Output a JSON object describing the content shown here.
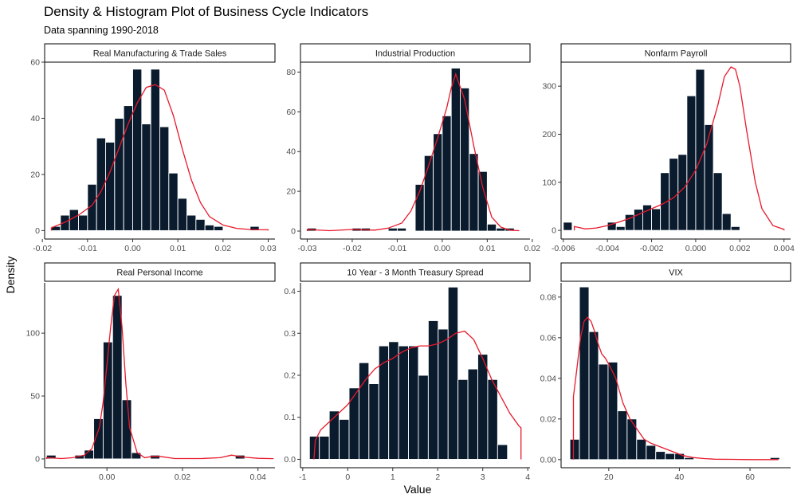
{
  "title": "Density & Histogram Plot of Business Cycle Indicators",
  "subtitle": "Data spanning 1990-2018",
  "xlabel": "Value",
  "ylabel": "Density",
  "colors": {
    "bar": "#0b1b2e",
    "density": "#e8192c",
    "axis": "#000000",
    "tick_text": "#4d4d4d"
  },
  "chart_data": [
    {
      "type": "bar",
      "title": "Real Manufacturing & Trade Sales",
      "xlim": [
        -0.0195,
        0.0315
      ],
      "ylim": [
        -3,
        60
      ],
      "xticks": [
        -0.02,
        -0.01,
        0.0,
        0.01,
        0.02,
        0.03
      ],
      "xtick_labels": [
        "-0.02",
        "-0.01",
        "0.00",
        "0.01",
        "0.02",
        "0.03"
      ],
      "yticks": [
        0,
        20,
        40,
        60
      ],
      "bins": {
        "start": -0.018,
        "width": 0.002,
        "values": [
          1.5,
          5.5,
          7.5,
          5.5,
          16.5,
          33,
          31.5,
          40,
          44.5,
          57.5,
          38,
          57.5,
          37,
          20.5,
          11.5,
          5.5,
          4,
          2,
          1.5,
          0,
          0,
          0,
          1.5
        ]
      },
      "density": {
        "x": [
          -0.018,
          -0.015,
          -0.012,
          -0.009,
          -0.007,
          -0.005,
          -0.003,
          -0.001,
          0.001,
          0.003,
          0.005,
          0.007,
          0.009,
          0.011,
          0.013,
          0.015,
          0.017,
          0.02,
          0.023,
          0.026,
          0.029,
          0.03
        ],
        "y": [
          1,
          3,
          5.5,
          9,
          14,
          21,
          29.5,
          38,
          45.5,
          51,
          52,
          50,
          41,
          29,
          18,
          10,
          5,
          2,
          0.8,
          0.4,
          0.3,
          0.3
        ]
      }
    },
    {
      "type": "bar",
      "title": "Industrial Production",
      "xlim": [
        -0.0315,
        0.0195
      ],
      "ylim": [
        -4,
        85
      ],
      "xticks": [
        -0.03,
        -0.02,
        -0.01,
        0.0,
        0.01,
        0.02
      ],
      "xtick_labels": [
        "-0.03",
        "-0.02",
        "-0.01",
        "0.00",
        "0.01",
        "0.02"
      ],
      "yticks": [
        0,
        20,
        40,
        60,
        80
      ],
      "bins": {
        "start": -0.03,
        "width": 0.002,
        "values": [
          1.5,
          0,
          0,
          0,
          0,
          1.5,
          1.5,
          0,
          0,
          1.5,
          1.5,
          0,
          23.5,
          38,
          49,
          58,
          82,
          72,
          39,
          30,
          3.5,
          1.5,
          1.5
        ]
      },
      "density": {
        "x": [
          -0.03,
          -0.025,
          -0.02,
          -0.015,
          -0.012,
          -0.009,
          -0.007,
          -0.005,
          -0.003,
          -0.001,
          0.001,
          0.002,
          0.003,
          0.005,
          0.007,
          0.009,
          0.011,
          0.013,
          0.015,
          0.017
        ],
        "y": [
          0.8,
          0.2,
          0.8,
          0.5,
          1.5,
          4,
          10,
          20,
          33,
          47,
          62,
          72,
          79,
          66,
          43,
          22,
          7,
          2,
          0.5,
          0.2
        ]
      }
    },
    {
      "type": "bar",
      "title": "Nonfarm Payroll",
      "xlim": [
        -0.0061,
        0.0043
      ],
      "ylim": [
        -18,
        350
      ],
      "xticks": [
        -0.006,
        -0.004,
        -0.002,
        0.0,
        0.002,
        0.004
      ],
      "xtick_labels": [
        "-0.006",
        "-0.004",
        "-0.002",
        "0.000",
        "0.002",
        "0.004"
      ],
      "yticks": [
        0,
        100,
        200,
        300
      ],
      "bins": {
        "start": -0.006,
        "width": 0.0004,
        "values": [
          17,
          0,
          0,
          0,
          0,
          17,
          8,
          33,
          44,
          53,
          45,
          120,
          150,
          158,
          280,
          335,
          220,
          120,
          35,
          8
        ]
      },
      "density": {
        "x": [
          -0.0055,
          -0.005,
          -0.0045,
          -0.004,
          -0.0035,
          -0.003,
          -0.0025,
          -0.002,
          -0.0015,
          -0.001,
          -0.0005,
          0.0,
          0.0005,
          0.001,
          0.0013,
          0.0016,
          0.0018,
          0.002,
          0.0023,
          0.0027,
          0.003,
          0.0035,
          0.004
        ],
        "y": [
          8,
          3,
          5,
          10,
          17,
          25,
          35,
          45,
          55,
          68,
          90,
          125,
          180,
          260,
          320,
          340,
          335,
          300,
          210,
          100,
          45,
          10,
          2
        ]
      }
    },
    {
      "type": "bar",
      "title": "Real Personal Income",
      "xlim": [
        -0.0165,
        0.0445
      ],
      "ylim": [
        -7,
        140
      ],
      "xticks": [
        0.0,
        0.02,
        0.04
      ],
      "xtick_labels": [
        "0.00",
        "0.02",
        "0.04"
      ],
      "yticks": [
        0,
        50,
        100
      ],
      "bins": {
        "start": -0.016,
        "width": 0.0025,
        "values": [
          3,
          0,
          0,
          3,
          7,
          32,
          93,
          130,
          47,
          5,
          0,
          3,
          0,
          0,
          0,
          0,
          0,
          0,
          0,
          0,
          3,
          0,
          0,
          0
        ]
      },
      "density": {
        "x": [
          -0.016,
          -0.012,
          -0.009,
          -0.006,
          -0.004,
          -0.002,
          -0.001,
          0.0,
          0.001,
          0.002,
          0.003,
          0.004,
          0.005,
          0.006,
          0.008,
          0.01,
          0.012,
          0.014,
          0.018,
          0.025,
          0.03,
          0.033,
          0.036,
          0.04,
          0.044
        ],
        "y": [
          1,
          0.3,
          1,
          3,
          8,
          25,
          45,
          75,
          105,
          130,
          135,
          105,
          60,
          25,
          5,
          1,
          2,
          2,
          0.3,
          0.3,
          1,
          3,
          1.5,
          0.5,
          0.2
        ]
      }
    },
    {
      "type": "bar",
      "title": "10 Year - 3 Month Treasury Spread",
      "xlim": [
        -1.05,
        4.05
      ],
      "ylim": [
        -0.02,
        0.42
      ],
      "xticks": [
        -1,
        0,
        1,
        2,
        3,
        4
      ],
      "xtick_labels": [
        "-1",
        "0",
        "1",
        "2",
        "3",
        "4"
      ],
      "yticks": [
        0.0,
        0.1,
        0.2,
        0.3,
        0.4
      ],
      "ytick_labels": [
        "0.0",
        "0.1",
        "0.2",
        "0.3",
        "0.4"
      ],
      "bins": {
        "start": -0.85,
        "width": 0.22,
        "values": [
          0.055,
          0.055,
          0.115,
          0.095,
          0.17,
          0.23,
          0.18,
          0.27,
          0.28,
          0.27,
          0.27,
          0.2,
          0.33,
          0.31,
          0.41,
          0.19,
          0.215,
          0.25,
          0.19,
          0.035
        ]
      },
      "density": {
        "x": [
          -0.75,
          -0.72,
          -0.6,
          -0.4,
          -0.2,
          0.0,
          0.2,
          0.4,
          0.6,
          0.8,
          1.0,
          1.2,
          1.4,
          1.6,
          1.8,
          2.0,
          2.2,
          2.4,
          2.6,
          2.8,
          3.0,
          3.2,
          3.4,
          3.6,
          3.8,
          3.85,
          3.85
        ],
        "y": [
          0.0,
          0.045,
          0.07,
          0.09,
          0.11,
          0.13,
          0.16,
          0.19,
          0.215,
          0.23,
          0.24,
          0.255,
          0.265,
          0.27,
          0.27,
          0.275,
          0.285,
          0.3,
          0.305,
          0.285,
          0.24,
          0.19,
          0.15,
          0.11,
          0.08,
          0.075,
          0.0
        ]
      }
    },
    {
      "type": "bar",
      "title": "VIX",
      "xlim": [
        6.5,
        71.5
      ],
      "ylim": [
        -0.004,
        0.087
      ],
      "xticks": [
        20,
        40,
        60
      ],
      "xtick_labels": [
        "20",
        "40",
        "60"
      ],
      "yticks": [
        0.0,
        0.02,
        0.04,
        0.06,
        0.08
      ],
      "ytick_labels": [
        "0.00",
        "0.02",
        "0.04",
        "0.06",
        "0.08"
      ],
      "bins": {
        "start": 9.0,
        "width": 2.7,
        "values": [
          0.01,
          0.085,
          0.063,
          0.047,
          0.048,
          0.024,
          0.02,
          0.01,
          0.007,
          0.004,
          0.003,
          0.003,
          0.001,
          0,
          0,
          0,
          0,
          0,
          0,
          0,
          0,
          0.001
        ]
      },
      "density": {
        "x": [
          10.0,
          10.0,
          11,
          12,
          13,
          14,
          15,
          16,
          17,
          18,
          19,
          20,
          22,
          24,
          26,
          28,
          30,
          32,
          35,
          38,
          41,
          44,
          47,
          50,
          55,
          60,
          65,
          68
        ],
        "y": [
          0.0,
          0.031,
          0.045,
          0.06,
          0.068,
          0.07,
          0.068,
          0.063,
          0.057,
          0.052,
          0.05,
          0.047,
          0.04,
          0.028,
          0.02,
          0.015,
          0.01,
          0.008,
          0.006,
          0.004,
          0.002,
          0.001,
          0.0005,
          0.0002,
          0.0001,
          0.0,
          0.0,
          0.0
        ]
      }
    }
  ]
}
